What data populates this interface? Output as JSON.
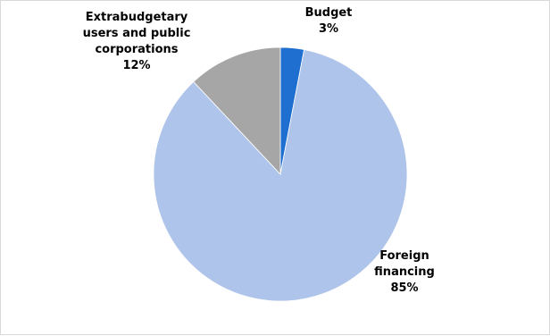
{
  "chart_data": {
    "type": "pie",
    "slices": [
      {
        "label_lines": [
          "Budget"
        ],
        "percent_label": "3%",
        "value": 3,
        "color": "#1f6fd1"
      },
      {
        "label_lines": [
          "Foreign",
          "financing"
        ],
        "percent_label": "85%",
        "value": 85,
        "color": "#afc4ea"
      },
      {
        "label_lines": [
          "Extrabudgetary",
          "users and public",
          "corporations"
        ],
        "percent_label": "12%",
        "value": 12,
        "color": "#a6a6a6"
      }
    ],
    "start_angle_deg": 0,
    "direction": "clockwise"
  }
}
